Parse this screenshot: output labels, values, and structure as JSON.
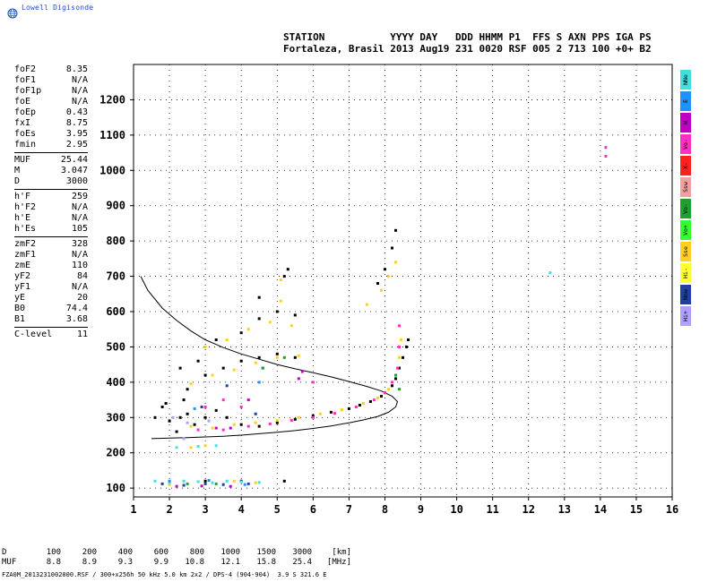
{
  "brand": {
    "name": "Lowell Digisonde"
  },
  "header": {
    "line1": "STATION           YYYY DAY   DDD HHMM P1  FFS S AXN PPS IGA PS",
    "line2": "Fortaleza, Brasil 2013 Aug19 231 0020 RSF 005 2 713 100 +0+ B2"
  },
  "params": {
    "group1": [
      {
        "name": "foF2",
        "value": "8.35"
      },
      {
        "name": "foF1",
        "value": "N/A"
      },
      {
        "name": "foF1p",
        "value": "N/A"
      },
      {
        "name": "foE",
        "value": "N/A"
      },
      {
        "name": "foEp",
        "value": "0.43"
      },
      {
        "name": "fxI",
        "value": "8.75"
      },
      {
        "name": "foEs",
        "value": "3.95"
      },
      {
        "name": "fmin",
        "value": "2.95"
      }
    ],
    "group2": [
      {
        "name": "MUF",
        "value": "25.44"
      },
      {
        "name": "M",
        "value": "3.047"
      },
      {
        "name": "D",
        "value": "3000"
      }
    ],
    "group3": [
      {
        "name": "h'F",
        "value": "259"
      },
      {
        "name": "h'F2",
        "value": "N/A"
      },
      {
        "name": "h'E",
        "value": "N/A"
      },
      {
        "name": "h'Es",
        "value": "105"
      }
    ],
    "group4": [
      {
        "name": "zmF2",
        "value": "328"
      },
      {
        "name": "zmF1",
        "value": "N/A"
      },
      {
        "name": "zmE",
        "value": "110"
      },
      {
        "name": "yF2",
        "value": "84"
      },
      {
        "name": "yF1",
        "value": "N/A"
      },
      {
        "name": "yE",
        "value": "20"
      },
      {
        "name": "B0",
        "value": "74.4"
      },
      {
        "name": "B1",
        "value": "3.68"
      }
    ],
    "group5": [
      {
        "name": "C-level",
        "value": "11"
      }
    ]
  },
  "legend": [
    {
      "label": "NNe",
      "color": "#40e0e0"
    },
    {
      "label": "E",
      "color": "#2090ff"
    },
    {
      "label": "W",
      "color": "#c000c0"
    },
    {
      "label": "Vo-",
      "color": "#ff30c0"
    },
    {
      "label": "X-",
      "color": "#ff2020"
    },
    {
      "label": "Ssw",
      "color": "#f0a0a0"
    },
    {
      "label": "Vo-",
      "color": "#20a030"
    },
    {
      "label": "Vo+",
      "color": "#30ff30"
    },
    {
      "label": "Sse",
      "color": "#ffd020"
    },
    {
      "label": "Hi-",
      "color": "#ffff30"
    },
    {
      "label": "Nnw",
      "color": "#2040a0"
    },
    {
      "label": "Hi+",
      "color": "#b0a0ff"
    }
  ],
  "chart_data": {
    "type": "scatter",
    "title": "",
    "xlabel": "",
    "ylabel": "",
    "xlim": [
      1,
      16
    ],
    "ylim": [
      75,
      1300
    ],
    "x_ticks": [
      "1",
      "2",
      "3",
      "4",
      "5",
      "6",
      "7",
      "8",
      "9",
      "10",
      "11",
      "12",
      "13",
      "14",
      "15",
      "16"
    ],
    "y_ticks": [
      "100",
      "200",
      "300",
      "400",
      "500",
      "600",
      "700",
      "800",
      "900",
      "1000",
      "1100",
      "1200"
    ],
    "grid": true,
    "series": [
      {
        "color": "#000000",
        "points": [
          [
            1.6,
            300
          ],
          [
            1.8,
            330
          ],
          [
            2,
            290
          ],
          [
            2.3,
            300
          ],
          [
            2.5,
            310
          ],
          [
            2.7,
            280
          ],
          [
            3,
            300
          ],
          [
            3.3,
            320
          ],
          [
            3.6,
            300
          ],
          [
            4,
            280
          ],
          [
            4.5,
            275
          ],
          [
            5,
            285
          ],
          [
            5.5,
            295
          ],
          [
            6,
            305
          ],
          [
            6.5,
            315
          ],
          [
            7,
            325
          ],
          [
            7.3,
            335
          ],
          [
            7.6,
            345
          ],
          [
            7.9,
            360
          ],
          [
            8,
            370
          ],
          [
            8.2,
            390
          ],
          [
            8.3,
            410
          ],
          [
            8.4,
            440
          ],
          [
            8.5,
            470
          ],
          [
            8.6,
            500
          ],
          [
            8.65,
            520
          ],
          [
            2.5,
            380
          ],
          [
            3,
            420
          ],
          [
            3.5,
            440
          ],
          [
            4,
            460
          ],
          [
            4.5,
            470
          ],
          [
            5,
            480
          ],
          [
            5.5,
            470
          ],
          [
            2.8,
            460
          ],
          [
            3.3,
            520
          ],
          [
            4,
            540
          ],
          [
            4.5,
            580
          ],
          [
            5,
            600
          ],
          [
            5.5,
            590
          ],
          [
            4.5,
            640
          ],
          [
            5.2,
            700
          ],
          [
            5.3,
            720
          ],
          [
            7.8,
            680
          ],
          [
            8,
            720
          ],
          [
            8.2,
            780
          ],
          [
            8.3,
            830
          ],
          [
            3,
            120
          ],
          [
            4,
            120
          ],
          [
            5.2,
            120
          ],
          [
            1.9,
            340
          ],
          [
            2.3,
            440
          ],
          [
            2.2,
            260
          ],
          [
            2.4,
            350
          ]
        ]
      },
      {
        "color": "#ffd020",
        "points": [
          [
            2.6,
            275
          ],
          [
            3.2,
            270
          ],
          [
            3.8,
            280
          ],
          [
            4.4,
            285
          ],
          [
            5,
            292
          ],
          [
            5.6,
            300
          ],
          [
            6.2,
            310
          ],
          [
            6.8,
            322
          ],
          [
            7.4,
            340
          ],
          [
            7.8,
            355
          ],
          [
            8.1,
            380
          ],
          [
            8.3,
            420
          ],
          [
            8.4,
            470
          ],
          [
            8.45,
            520
          ],
          [
            2.6,
            395
          ],
          [
            3.2,
            420
          ],
          [
            3.8,
            435
          ],
          [
            4.4,
            455
          ],
          [
            5,
            470
          ],
          [
            5.6,
            475
          ],
          [
            3,
            500
          ],
          [
            3.6,
            520
          ],
          [
            4.2,
            550
          ],
          [
            4.8,
            570
          ],
          [
            5.4,
            560
          ],
          [
            5.1,
            630
          ],
          [
            5.1,
            690
          ],
          [
            7.5,
            620
          ],
          [
            7.9,
            660
          ],
          [
            8.1,
            700
          ],
          [
            8.3,
            740
          ],
          [
            3.8,
            120
          ],
          [
            4.4,
            115
          ],
          [
            2.6,
            215
          ],
          [
            3,
            220
          ],
          [
            2,
            110
          ]
        ]
      },
      {
        "color": "#ff30c0",
        "points": [
          [
            2.8,
            265
          ],
          [
            3.5,
            265
          ],
          [
            4.2,
            275
          ],
          [
            4.8,
            282
          ],
          [
            5.4,
            292
          ],
          [
            6,
            300
          ],
          [
            6.6,
            312
          ],
          [
            7.2,
            330
          ],
          [
            7.7,
            350
          ],
          [
            8,
            370
          ],
          [
            8.2,
            400
          ],
          [
            8.35,
            440
          ],
          [
            8.4,
            500
          ],
          [
            8.4,
            560
          ],
          [
            3,
            330
          ],
          [
            3.5,
            350
          ],
          [
            4,
            330
          ],
          [
            6,
            400
          ],
          [
            14.15,
            1065
          ],
          [
            14.15,
            1040
          ]
        ]
      },
      {
        "color": "#40e0e0",
        "points": [
          [
            1.6,
            120
          ],
          [
            2,
            115
          ],
          [
            2.4,
            120
          ],
          [
            2.8,
            118
          ],
          [
            3.2,
            115
          ],
          [
            3.6,
            120
          ],
          [
            4,
            118
          ],
          [
            4.5,
            116
          ],
          [
            2.2,
            215
          ],
          [
            2.8,
            218
          ],
          [
            3.3,
            220
          ],
          [
            12.6,
            710
          ]
        ]
      },
      {
        "color": "#2040a0",
        "points": [
          [
            1.8,
            112
          ],
          [
            2.4,
            108
          ],
          [
            3,
            112
          ],
          [
            3.5,
            110
          ],
          [
            4.2,
            112
          ],
          [
            3.6,
            390
          ],
          [
            4.6,
            440
          ],
          [
            4.4,
            310
          ],
          [
            2.9,
            330
          ]
        ]
      },
      {
        "color": "#c000c0",
        "points": [
          [
            2.2,
            105
          ],
          [
            2.9,
            106
          ],
          [
            3.7,
            105
          ],
          [
            4.2,
            350
          ],
          [
            5.6,
            410
          ],
          [
            5.7,
            430
          ],
          [
            3.3,
            270
          ],
          [
            3.7,
            270
          ]
        ]
      },
      {
        "color": "#20a030",
        "points": [
          [
            2.5,
            112
          ],
          [
            3.3,
            112
          ],
          [
            4.6,
            440
          ],
          [
            5.2,
            470
          ],
          [
            8.3,
            420
          ],
          [
            8.4,
            380
          ]
        ]
      },
      {
        "color": "#2090ff",
        "points": [
          [
            2,
            120
          ],
          [
            3.1,
            122
          ],
          [
            4.1,
            110
          ],
          [
            2.7,
            325
          ],
          [
            4.5,
            400
          ]
        ]
      },
      {
        "color": "#b0a0ff",
        "points": [
          [
            2.1,
            300
          ],
          [
            2.5,
            285
          ],
          [
            3.1,
            290
          ],
          [
            2.4,
            240
          ]
        ]
      }
    ],
    "curves": [
      {
        "color": "#000000",
        "points": [
          [
            1.2,
            700
          ],
          [
            1.4,
            660
          ],
          [
            1.8,
            610
          ],
          [
            2.2,
            575
          ],
          [
            2.6,
            545
          ],
          [
            3,
            520
          ],
          [
            3.5,
            498
          ],
          [
            4,
            480
          ],
          [
            4.5,
            465
          ],
          [
            5,
            450
          ],
          [
            5.5,
            438
          ],
          [
            6,
            427
          ],
          [
            6.5,
            415
          ],
          [
            7,
            402
          ],
          [
            7.5,
            388
          ],
          [
            7.9,
            375
          ],
          [
            8.2,
            360
          ],
          [
            8.35,
            345
          ],
          [
            8.3,
            330
          ],
          [
            8.1,
            315
          ],
          [
            7.8,
            303
          ],
          [
            7.4,
            293
          ],
          [
            7,
            285
          ],
          [
            6.5,
            276
          ],
          [
            6,
            269
          ],
          [
            5.5,
            263
          ],
          [
            5,
            258
          ],
          [
            4.5,
            254
          ],
          [
            4,
            250
          ],
          [
            3.5,
            247
          ],
          [
            3,
            245
          ],
          [
            2.5,
            243
          ],
          [
            2,
            242
          ],
          [
            1.5,
            240
          ]
        ]
      }
    ]
  },
  "muf_table": {
    "d_label": "D",
    "muf_label": "MUF",
    "d_values": [
      "100",
      "200",
      "400",
      "600",
      "800",
      "1000",
      "1500",
      "3000"
    ],
    "muf_values": [
      "8.8",
      "8.9",
      "9.3",
      "9.9",
      "10.8",
      "12.1",
      "15.8",
      "25.4"
    ],
    "d_unit": "[km]",
    "muf_unit": "[MHz]"
  },
  "footer": "FZA0M_2013231002000.RSF / 300+x256h 50 kHz 5.0 km 2x2 / DPS-4 (904-904)  3.9 S 321.6 E"
}
